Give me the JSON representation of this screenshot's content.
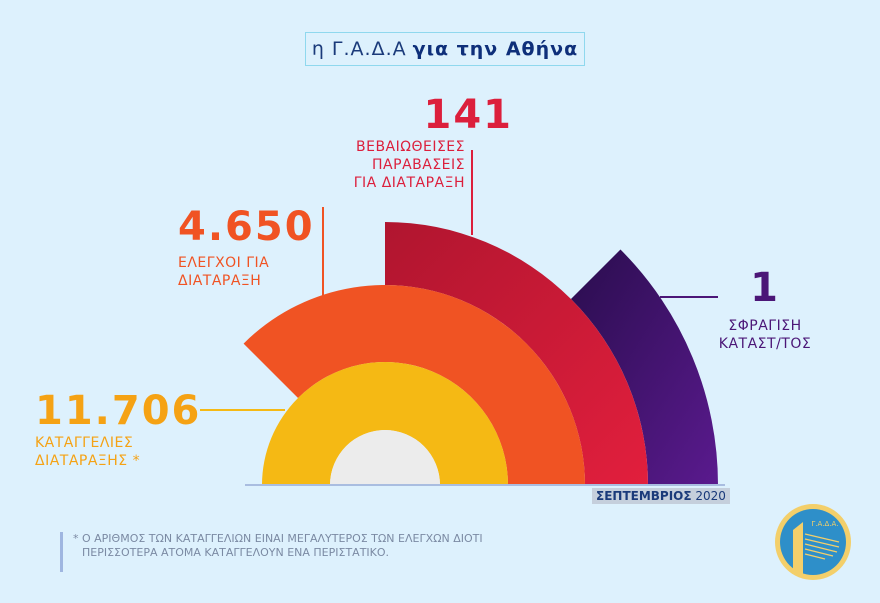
{
  "title": {
    "prefix": "η Γ.Α.Δ.Α",
    "suffix": "για την Αθήνα"
  },
  "stats": [
    {
      "value": "11.706",
      "label_lines": [
        "ΚΑΤΑΓΓΕΛΙΕΣ",
        "ΔΙΑΤΑΡΑΞΗΣ  *"
      ],
      "color": "#f5b914"
    },
    {
      "value": "4.650",
      "label_lines": [
        "ΕΛΕΓΧΟΙ ΓΙΑ",
        "ΔΙΑΤΑΡΑΞΗ"
      ],
      "color": "#f05323"
    },
    {
      "value": "141",
      "label_lines": [
        "ΒΕΒΑΙΩΘΕΙΣΕΣ",
        "ΠΑΡΑΒΑΣΕΙΣ",
        "ΓΙΑ ΔΙΑΤΑΡΑΞΗ"
      ],
      "color": "#dc1f3c"
    },
    {
      "value": "1",
      "label_lines": [
        "ΣΦΡΑΓΙΣΗ",
        "ΚΑΤΑΣΤ/ΤΟΣ"
      ],
      "color": "#4b1677"
    }
  ],
  "date": {
    "month": "ΣΕΠΤΕΜΒΡΙΟΣ",
    "year": "2020"
  },
  "footnote": [
    "* Ο ΑΡΙΘΜΟΣ ΤΩΝ ΚΑΤΑΓΓΕΛΙΩΝ ΕΙΝΑΙ ΜΕΓΑΛΥΤΕΡΟΣ ΤΩΝ ΕΛΕΓΧΩΝ ΔΙΟΤΙ",
    "ΠΕΡΙΣΣΟΤΕΡΑ ΑΤΟΜΑ ΚΑΤΑΓΓΕΛΟΥΝ ΕΝΑ ΠΕΡΙΣΤΑΤΙΚΟ."
  ],
  "logo": {
    "text": "Γ.Α.Δ.Α."
  }
}
